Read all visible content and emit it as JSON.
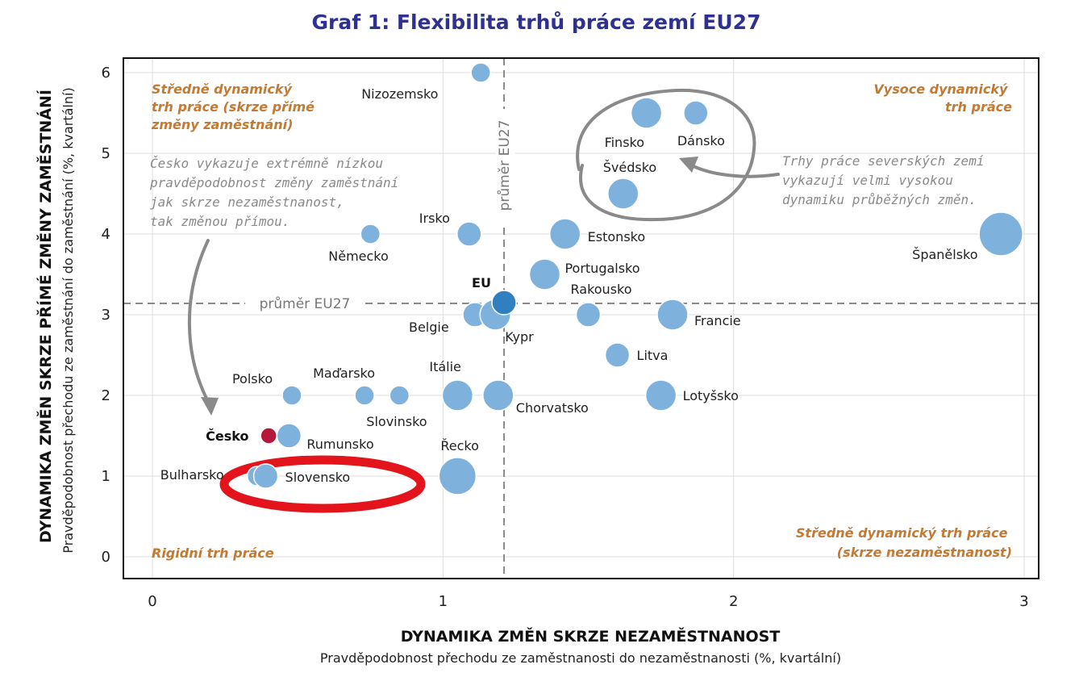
{
  "chart_data": {
    "type": "scatter",
    "title": "Graf 1: Flexibilita trhů práce zemí EU27",
    "xlabel": "DYNAMIKA ZMĚN SKRZE NEZAMĚSTNANOST",
    "xlabel_sub": "Pravděpodobnost přechodu ze zaměstnanosti do nezaměstnanosti (%, kvartální)",
    "ylabel": "DYNAMIKA ZMĚN SKRZE PŘÍMÉ ZMĚNY ZAMĚSTNÁNÍ",
    "ylabel_sub": "Pravděpodobnost přechodu ze zaměstnání do zaměstnání (%, kvartální)",
    "xlim": [
      -0.1,
      3.05
    ],
    "ylim": [
      -0.27,
      6.18
    ],
    "xticks": [
      "0",
      "1",
      "2",
      "3"
    ],
    "yticks": [
      "0",
      "1",
      "2",
      "3",
      "4",
      "5",
      "6"
    ],
    "grid": true,
    "reference_lines": {
      "x_mean": 1.21,
      "y_mean": 3.14,
      "x_mean_label": "průměr EU27",
      "y_mean_label": "průměr EU27"
    },
    "points": [
      {
        "name": "Nizozemsko",
        "x": 1.13,
        "y": 6.0,
        "size": 1
      },
      {
        "name": "Finsko",
        "x": 1.7,
        "y": 5.5,
        "size": 3
      },
      {
        "name": "Dánsko",
        "x": 1.87,
        "y": 5.5,
        "size": 2
      },
      {
        "name": "Švédsko",
        "x": 1.62,
        "y": 4.5,
        "size": 3
      },
      {
        "name": "Irsko",
        "x": 1.09,
        "y": 4.0,
        "size": 2
      },
      {
        "name": "Německo",
        "x": 0.75,
        "y": 4.0,
        "size": 1
      },
      {
        "name": "Estonsko",
        "x": 1.42,
        "y": 4.0,
        "size": 3
      },
      {
        "name": "Španělsko",
        "x": 2.92,
        "y": 4.0,
        "size": 5
      },
      {
        "name": "Portugalsko",
        "x": 1.35,
        "y": 3.5,
        "size": 3
      },
      {
        "name": "Rakousko",
        "x": 1.5,
        "y": 3.0,
        "size": 2
      },
      {
        "name": "Francie",
        "x": 1.79,
        "y": 3.0,
        "size": 3
      },
      {
        "name": "Belgie",
        "x": 1.11,
        "y": 3.0,
        "size": 2
      },
      {
        "name": "Kypr",
        "x": 1.18,
        "y": 3.0,
        "size": 3
      },
      {
        "name": "EU",
        "x": 1.21,
        "y": 3.15,
        "size": 2
      },
      {
        "name": "Litva",
        "x": 1.6,
        "y": 2.5,
        "size": 2
      },
      {
        "name": "Lotyšsko",
        "x": 1.75,
        "y": 2.0,
        "size": 3
      },
      {
        "name": "Polsko",
        "x": 0.48,
        "y": 2.0,
        "size": 1
      },
      {
        "name": "Maďarsko",
        "x": 0.73,
        "y": 2.0,
        "size": 1
      },
      {
        "name": "Slovinsko",
        "x": 0.85,
        "y": 2.0,
        "size": 1
      },
      {
        "name": "Itálie",
        "x": 1.05,
        "y": 2.0,
        "size": 3
      },
      {
        "name": "Chorvatsko",
        "x": 1.19,
        "y": 2.0,
        "size": 3
      },
      {
        "name": "Česko",
        "x": 0.4,
        "y": 1.5,
        "size": 0
      },
      {
        "name": "Rumunsko",
        "x": 0.47,
        "y": 1.5,
        "size": 2
      },
      {
        "name": "Bulharsko",
        "x": 0.36,
        "y": 1.0,
        "size": 1
      },
      {
        "name": "Slovensko",
        "x": 0.39,
        "y": 1.0,
        "size": 2
      },
      {
        "name": "Řecko",
        "x": 1.05,
        "y": 1.0,
        "size": 4
      }
    ],
    "colors": {
      "point": "#7eb2dc",
      "eu": "#2f7fc1",
      "czech": "#b5183c",
      "title": "#2e3192",
      "quadrant": "#c27a34",
      "note": "#8a8a8a",
      "highlight": "#e3141c"
    }
  },
  "quadrants": {
    "top_left": [
      "Středně dynamický",
      "trh práce (skrze přímé",
      "změny zaměstnání)"
    ],
    "top_right": [
      "Vysoce dynamický",
      "trh práce"
    ],
    "bottom_left": [
      "Rigidní trh práce"
    ],
    "bottom_right": [
      "Středně dynamický trh práce",
      "(skrze nezaměstnanost)"
    ]
  },
  "annotations": {
    "czech_note": [
      "Česko vykazuje extrémně nízkou",
      "pravděpodobnost změny zaměstnání",
      "jak skrze nezaměstnanost,",
      "tak změnou přímou."
    ],
    "nordic_note": [
      "Trhy práce severských zemí",
      "vykazují velmi vysokou",
      "dynamiku průběžných změn."
    ]
  }
}
